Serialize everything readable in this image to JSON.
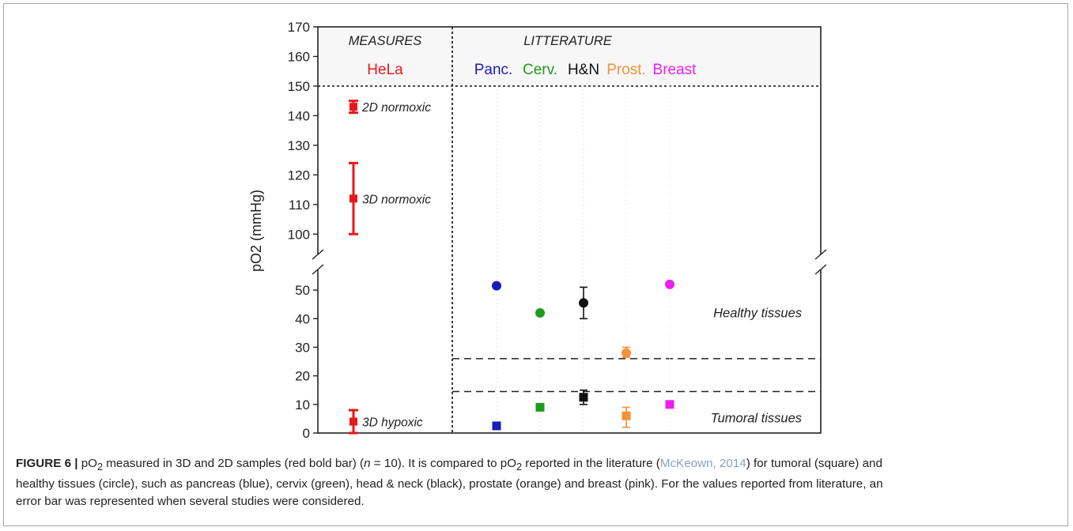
{
  "chart_data": {
    "type": "scatter",
    "ylabel": "pO2 (mmHg)",
    "y_axis": {
      "segments": [
        {
          "range": [
            0,
            55
          ],
          "ticks": [
            0,
            10,
            20,
            30,
            40,
            50
          ]
        },
        {
          "range": [
            95,
            170
          ],
          "ticks": [
            100,
            110,
            120,
            130,
            140,
            150,
            160,
            170
          ]
        }
      ],
      "broken": true
    },
    "sections": [
      {
        "title": "MEASURES",
        "labels": [
          {
            "text": "HeLa",
            "color": "#e8191b"
          }
        ]
      },
      {
        "title": "LITTERATURE",
        "labels": [
          {
            "text": "Panc.",
            "color": "#1b1bb5"
          },
          {
            "text": "Cerv.",
            "color": "#1e9b1e"
          },
          {
            "text": "H&N",
            "color": "#111111"
          },
          {
            "text": "Prost.",
            "color": "#f5913a"
          },
          {
            "text": "Breast",
            "color": "#ee1fee"
          }
        ]
      }
    ],
    "hela": [
      {
        "label": "2D normoxic",
        "value": 143,
        "err": [
          141,
          145
        ]
      },
      {
        "label": "3D normoxic",
        "value": 112,
        "err": [
          100,
          124
        ]
      },
      {
        "label": "3D hypoxic",
        "value": 4,
        "err": [
          0,
          8
        ]
      }
    ],
    "literature": [
      {
        "name": "Panc.",
        "color": "#1b1bb5",
        "healthy": {
          "value": 51.5
        },
        "tumoral": {
          "value": 2.5
        }
      },
      {
        "name": "Cerv.",
        "color": "#1e9b1e",
        "healthy": {
          "value": 42
        },
        "tumoral": {
          "value": 9
        }
      },
      {
        "name": "H&N",
        "color": "#111111",
        "healthy": {
          "value": 45.5,
          "err": [
            40,
            51
          ]
        },
        "tumoral": {
          "value": 12.5,
          "err": [
            10,
            15
          ]
        }
      },
      {
        "name": "Prost.",
        "color": "#f5913a",
        "healthy": {
          "value": 28,
          "err": [
            26.5,
            30
          ]
        },
        "tumoral": {
          "value": 6,
          "err": [
            2,
            9
          ]
        }
      },
      {
        "name": "Breast",
        "color": "#ee1fee",
        "healthy": {
          "value": 52
        },
        "tumoral": {
          "value": 10
        }
      }
    ],
    "thresholds": [
      26,
      14.5
    ],
    "regions": [
      {
        "text": "Healthy tissues"
      },
      {
        "text": "Tumoral tissues"
      }
    ]
  },
  "caption": {
    "label": "FIGURE 6 |",
    "line1_a": " pO",
    "line1_b": " measured in 3D and 2D samples (red bold bar) (",
    "line1_n": "n",
    "line1_c": " = 10). It is compared to pO",
    "line1_d": " reported in the literature (",
    "line1_link": "McKeown, 2014",
    "line1_e": ") for tumoral (square) and",
    "line2": "healthy tissues (circle), such as pancreas (blue), cervix (green), head & neck (black), prostate (orange) and breast (pink). For the values reported from literature, an",
    "line3": "error bar was represented when several studies were considered.",
    "sub": "2"
  }
}
